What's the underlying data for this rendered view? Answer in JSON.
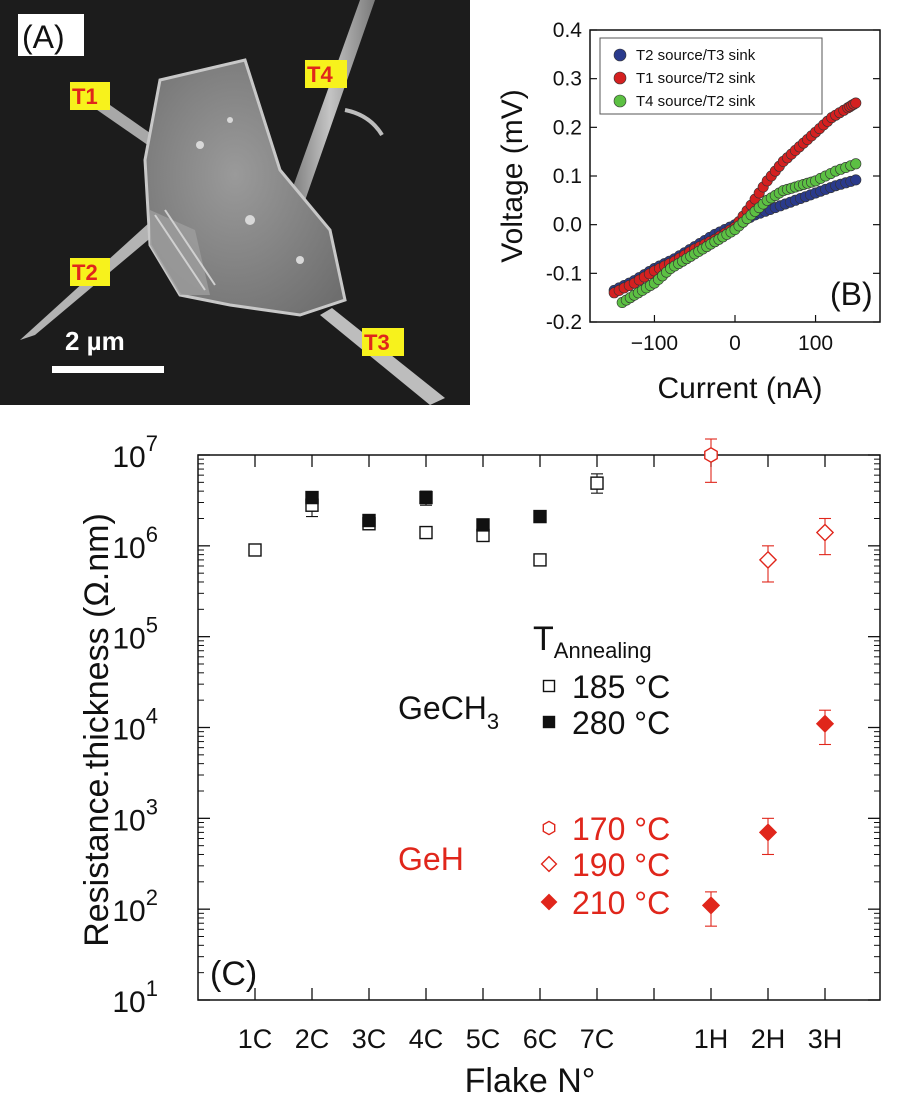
{
  "panel_a": {
    "label": "(A)",
    "terminals": [
      "T1",
      "T2",
      "T3",
      "T4"
    ],
    "scale_bar": "2 µm",
    "colors": {
      "background": "#1a1a1a",
      "flake": "#8c8c8c",
      "tag_fill": "#f7f21c",
      "tag_text": "#e0261b"
    }
  },
  "chart_data": [
    {
      "type": "scatter",
      "panel_label": "(B)",
      "xlabel": "Current (nA)",
      "ylabel": "Voltage (mV)",
      "xlim": [
        -180,
        180
      ],
      "ylim": [
        -0.2,
        0.4
      ],
      "x_ticks": [
        "-100",
        "0",
        "100"
      ],
      "y_ticks": [
        "-0.2",
        "-0.1",
        "0.0",
        "0.1",
        "0.2",
        "0.3",
        "0.4"
      ],
      "legend_position": "top-left",
      "series": [
        {
          "name": "T2 source/T3 sink",
          "color": "#2a3a8c",
          "points": [
            [
              -150,
              -0.135
            ],
            [
              -125,
              -0.115
            ],
            [
              -100,
              -0.09
            ],
            [
              -75,
              -0.07
            ],
            [
              -50,
              -0.045
            ],
            [
              -25,
              -0.02
            ],
            [
              0,
              0.0
            ],
            [
              25,
              0.02
            ],
            [
              50,
              0.035
            ],
            [
              75,
              0.05
            ],
            [
              100,
              0.065
            ],
            [
              125,
              0.08
            ],
            [
              150,
              0.092
            ]
          ]
        },
        {
          "name": "T1 source/T2 sink",
          "color": "#d42020",
          "points": [
            [
              -150,
              -0.14
            ],
            [
              -125,
              -0.12
            ],
            [
              -100,
              -0.095
            ],
            [
              -75,
              -0.075
            ],
            [
              -50,
              -0.05
            ],
            [
              -25,
              -0.03
            ],
            [
              0,
              -0.005
            ],
            [
              20,
              0.04
            ],
            [
              40,
              0.09
            ],
            [
              60,
              0.13
            ],
            [
              80,
              0.16
            ],
            [
              100,
              0.19
            ],
            [
              120,
              0.22
            ],
            [
              140,
              0.24
            ],
            [
              150,
              0.25
            ]
          ]
        },
        {
          "name": "T4 source/T2 sink",
          "color": "#5cc043",
          "points": [
            [
              -140,
              -0.16
            ],
            [
              -120,
              -0.14
            ],
            [
              -100,
              -0.12
            ],
            [
              -80,
              -0.09
            ],
            [
              -60,
              -0.07
            ],
            [
              -40,
              -0.05
            ],
            [
              -20,
              -0.03
            ],
            [
              0,
              -0.01
            ],
            [
              20,
              0.02
            ],
            [
              40,
              0.05
            ],
            [
              60,
              0.07
            ],
            [
              80,
              0.08
            ],
            [
              100,
              0.09
            ],
            [
              125,
              0.11
            ],
            [
              150,
              0.125
            ]
          ]
        }
      ]
    },
    {
      "type": "scatter",
      "panel_label": "(C)",
      "xlabel": "Flake N°",
      "ylabel": "Resistance.thickness (Ω.nm)",
      "y_scale": "log",
      "ylim": [
        10,
        10000000
      ],
      "y_tick_exponents": [
        "1",
        "2",
        "3",
        "4",
        "5",
        "6",
        "7"
      ],
      "y_tick_base": "10",
      "categories": [
        "1C",
        "2C",
        "3C",
        "4C",
        "5C",
        "6C",
        "7C",
        "",
        "1H",
        "2H",
        "3H"
      ],
      "legend_title": "T",
      "legend_title_sub": "Annealing",
      "groups": [
        {
          "name": "GeCH",
          "name_sub": "3",
          "color": "#111111"
        },
        {
          "name": "GeH",
          "color": "#e0261b"
        }
      ],
      "series": [
        {
          "name": "185 °C",
          "marker": "open-square",
          "color": "#111111",
          "points": [
            {
              "x": "1C",
              "y": 900000
            },
            {
              "x": "2C",
              "y": 2800000,
              "err": [
                2100000,
                3600000
              ]
            },
            {
              "x": "3C",
              "y": 1750000
            },
            {
              "x": "4C",
              "y": 1400000
            },
            {
              "x": "5C",
              "y": 1300000
            },
            {
              "x": "6C",
              "y": 700000
            },
            {
              "x": "7C",
              "y": 4900000,
              "err": [
                3800000,
                6200000
              ]
            }
          ]
        },
        {
          "name": "280 °C",
          "marker": "filled-square",
          "color": "#111111",
          "points": [
            {
              "x": "2C",
              "y": 3400000
            },
            {
              "x": "3C",
              "y": 1900000
            },
            {
              "x": "4C",
              "y": 3400000,
              "err": [
                2800000,
                4000000
              ]
            },
            {
              "x": "5C",
              "y": 1700000
            },
            {
              "x": "6C",
              "y": 2100000
            }
          ]
        },
        {
          "name": "170 °C",
          "marker": "open-hexagon",
          "color": "#e0261b",
          "points": [
            {
              "x": "1H",
              "y": 10000000,
              "err": [
                5000000,
                15000000
              ]
            }
          ]
        },
        {
          "name": "190 °C",
          "marker": "open-diamond",
          "color": "#e0261b",
          "points": [
            {
              "x": "2H",
              "y": 700000,
              "err": [
                400000,
                1000000
              ]
            },
            {
              "x": "3H",
              "y": 1400000,
              "err": [
                800000,
                2000000
              ]
            }
          ]
        },
        {
          "name": "210 °C",
          "marker": "filled-diamond",
          "color": "#e0261b",
          "points": [
            {
              "x": "1H",
              "y": 110,
              "err": [
                65,
                155
              ]
            },
            {
              "x": "2H",
              "y": 700,
              "err": [
                400,
                1000
              ]
            },
            {
              "x": "3H",
              "y": 11000,
              "err": [
                6500,
                15500
              ]
            }
          ]
        }
      ]
    }
  ]
}
